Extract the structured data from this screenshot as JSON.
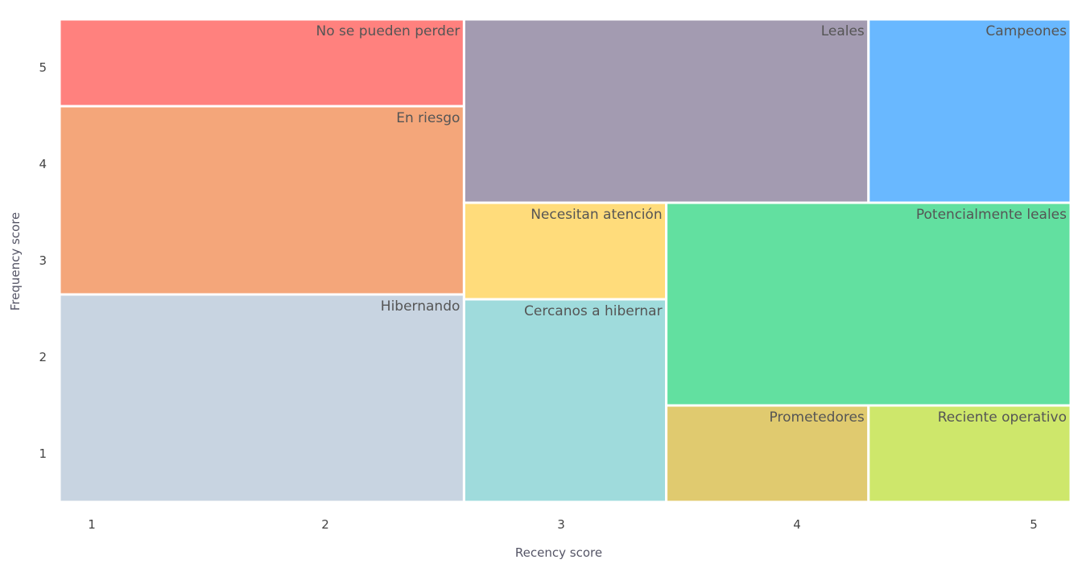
{
  "chart_data": {
    "type": "heatmap",
    "xlabel": "Recency score",
    "ylabel": "Frequency score",
    "x_ticks": [
      "1",
      "2",
      "3",
      "4",
      "5"
    ],
    "y_ticks": [
      "1",
      "2",
      "3",
      "4",
      "5"
    ],
    "xlim": [
      0.5,
      5.5
    ],
    "ylim": [
      0.5,
      5.5
    ],
    "segments": [
      {
        "name": "No se pueden perder",
        "color": "#FF817E",
        "x": [
          0.5,
          2.5
        ],
        "y": [
          4.6,
          5.5
        ]
      },
      {
        "name": "En riesgo",
        "color": "#F4A67A",
        "x": [
          0.5,
          2.5
        ],
        "y": [
          2.65,
          4.6
        ]
      },
      {
        "name": "Hibernando",
        "color": "#C8D4E1",
        "x": [
          0.5,
          2.5
        ],
        "y": [
          0.5,
          2.65
        ]
      },
      {
        "name": "Leales",
        "color": "#A39BB1",
        "x": [
          2.5,
          4.5
        ],
        "y": [
          3.6,
          5.5
        ]
      },
      {
        "name": "Campeones",
        "color": "#69B8FF",
        "x": [
          4.5,
          5.5
        ],
        "y": [
          3.6,
          5.5
        ]
      },
      {
        "name": "Necesitan atención",
        "color": "#FFDC7B",
        "x": [
          2.5,
          3.5
        ],
        "y": [
          2.6,
          3.6
        ]
      },
      {
        "name": "Cercanos a hibernar",
        "color": "#9FDBDC",
        "x": [
          2.5,
          3.5
        ],
        "y": [
          0.5,
          2.6
        ]
      },
      {
        "name": "Potencialmente leales",
        "color": "#62E0A0",
        "x": [
          3.5,
          5.5
        ],
        "y": [
          1.5,
          3.6
        ]
      },
      {
        "name": "Prometedores",
        "color": "#E0CA6F",
        "x": [
          3.5,
          4.5
        ],
        "y": [
          0.5,
          1.5
        ]
      },
      {
        "name": "Reciente operativo",
        "color": "#CEE76B",
        "x": [
          4.5,
          5.5
        ],
        "y": [
          0.5,
          1.5
        ]
      }
    ]
  }
}
